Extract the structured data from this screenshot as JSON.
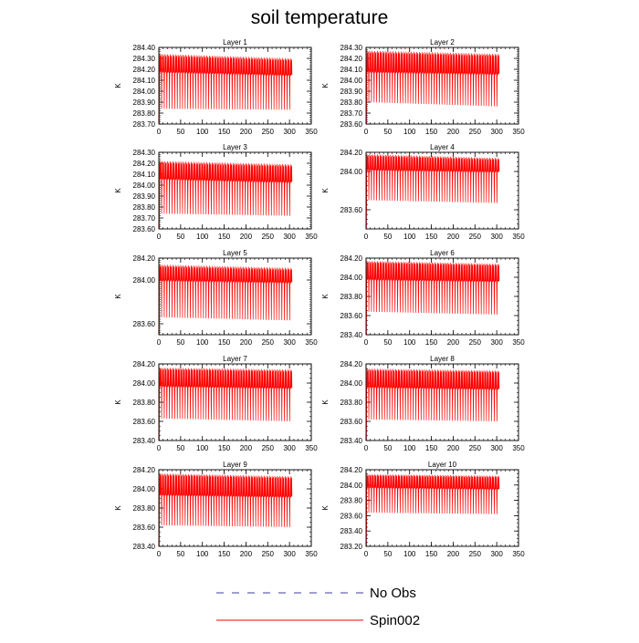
{
  "figure": {
    "title": "soil temperature"
  },
  "legend": {
    "placement": "bottom-center",
    "items": [
      {
        "label": "No Obs",
        "color": "#3d3d9e",
        "style": "dashed"
      },
      {
        "label": "Spin002",
        "color": "#ff0000",
        "style": "solid"
      }
    ]
  },
  "chart_data": [
    {
      "type": "line",
      "title": "Layer 1",
      "xlabel": "",
      "ylabel": "K",
      "xlim": [
        0,
        350
      ],
      "xticks": [
        0,
        50,
        100,
        150,
        200,
        250,
        300,
        350
      ],
      "ylim": [
        283.7,
        284.4
      ],
      "yticks": [
        "283.70",
        "283.80",
        "283.90",
        "284.00",
        "284.10",
        "284.20",
        "284.30",
        "284.40"
      ],
      "series": [
        {
          "name": "Spin002",
          "color": "#ff0000",
          "x_range": [
            1,
            306
          ],
          "period_days": 6,
          "band_upper": [
            284.34,
            284.3
          ],
          "band_mid": [
            284.18,
            284.15
          ],
          "lower_peak": [
            283.84,
            283.83
          ]
        }
      ]
    },
    {
      "type": "line",
      "title": "Layer 2",
      "xlabel": "",
      "ylabel": "K",
      "xlim": [
        0,
        350
      ],
      "xticks": [
        0,
        50,
        100,
        150,
        200,
        250,
        300,
        350
      ],
      "ylim": [
        283.6,
        284.3
      ],
      "yticks": [
        "283.60",
        "283.70",
        "283.80",
        "283.90",
        "284.00",
        "284.10",
        "284.20",
        "284.30"
      ],
      "series": [
        {
          "name": "Spin002",
          "color": "#ff0000",
          "x_range": [
            1,
            306
          ],
          "period_days": 6,
          "band_upper": [
            284.27,
            284.24
          ],
          "band_mid": [
            284.08,
            284.06
          ],
          "lower_peak": [
            283.8,
            283.76
          ]
        }
      ]
    },
    {
      "type": "line",
      "title": "Layer 3",
      "xlabel": "",
      "ylabel": "K",
      "xlim": [
        0,
        350
      ],
      "xticks": [
        0,
        50,
        100,
        150,
        200,
        250,
        300,
        350
      ],
      "ylim": [
        283.6,
        284.3
      ],
      "yticks": [
        "283.60",
        "283.70",
        "283.80",
        "283.90",
        "284.00",
        "284.10",
        "284.20",
        "284.30"
      ],
      "series": [
        {
          "name": "Spin002",
          "color": "#ff0000",
          "x_range": [
            1,
            306
          ],
          "period_days": 6,
          "band_upper": [
            284.22,
            284.19
          ],
          "band_mid": [
            284.06,
            284.03
          ],
          "lower_peak": [
            283.74,
            283.72
          ]
        }
      ]
    },
    {
      "type": "line",
      "title": "Layer 4",
      "xlabel": "",
      "ylabel": "K",
      "xlim": [
        0,
        350
      ],
      "xticks": [
        0,
        50,
        100,
        150,
        200,
        250,
        300,
        350
      ],
      "ylim": [
        283.4,
        284.2
      ],
      "yticks": [
        "283.60",
        "284.00",
        "284.20"
      ],
      "series": [
        {
          "name": "Spin002",
          "color": "#ff0000",
          "x_range": [
            1,
            306
          ],
          "period_days": 6,
          "band_upper": [
            284.18,
            284.14
          ],
          "band_mid": [
            284.02,
            284.0
          ],
          "lower_peak": [
            283.7,
            283.67
          ]
        }
      ]
    },
    {
      "type": "line",
      "title": "Layer 5",
      "xlabel": "",
      "ylabel": "K",
      "xlim": [
        0,
        350
      ],
      "xticks": [
        0,
        50,
        100,
        150,
        200,
        250,
        300,
        350
      ],
      "ylim": [
        283.5,
        284.2
      ],
      "yticks": [
        "283.60",
        "284.00",
        "284.20"
      ],
      "series": [
        {
          "name": "Spin002",
          "color": "#ff0000",
          "x_range": [
            1,
            306
          ],
          "period_days": 6,
          "band_upper": [
            284.14,
            284.11
          ],
          "band_mid": [
            284.0,
            283.98
          ],
          "lower_peak": [
            283.66,
            283.63
          ]
        }
      ]
    },
    {
      "type": "line",
      "title": "Layer 6",
      "xlabel": "",
      "ylabel": "K",
      "xlim": [
        0,
        350
      ],
      "xticks": [
        0,
        50,
        100,
        150,
        200,
        250,
        300,
        350
      ],
      "ylim": [
        283.4,
        284.2
      ],
      "yticks": [
        "283.40",
        "283.60",
        "283.80",
        "284.00",
        "284.20"
      ],
      "series": [
        {
          "name": "Spin002",
          "color": "#ff0000",
          "x_range": [
            1,
            306
          ],
          "period_days": 6,
          "band_upper": [
            284.17,
            284.14
          ],
          "band_mid": [
            283.98,
            283.96
          ],
          "lower_peak": [
            283.64,
            283.61
          ]
        }
      ]
    },
    {
      "type": "line",
      "title": "Layer 7",
      "xlabel": "",
      "ylabel": "K",
      "xlim": [
        0,
        350
      ],
      "xticks": [
        0,
        50,
        100,
        150,
        200,
        250,
        300,
        350
      ],
      "ylim": [
        283.4,
        284.2
      ],
      "yticks": [
        "283.40",
        "283.60",
        "283.80",
        "284.00",
        "284.20"
      ],
      "series": [
        {
          "name": "Spin002",
          "color": "#ff0000",
          "x_range": [
            1,
            306
          ],
          "period_days": 6,
          "band_upper": [
            284.16,
            284.14
          ],
          "band_mid": [
            283.97,
            283.95
          ],
          "lower_peak": [
            283.63,
            283.6
          ]
        }
      ]
    },
    {
      "type": "line",
      "title": "Layer 8",
      "xlabel": "",
      "ylabel": "K",
      "xlim": [
        0,
        350
      ],
      "xticks": [
        0,
        50,
        100,
        150,
        200,
        250,
        300,
        350
      ],
      "ylim": [
        283.4,
        284.2
      ],
      "yticks": [
        "283.40",
        "283.60",
        "283.80",
        "284.00",
        "284.20"
      ],
      "series": [
        {
          "name": "Spin002",
          "color": "#ff0000",
          "x_range": [
            1,
            306
          ],
          "period_days": 6,
          "band_upper": [
            284.15,
            284.13
          ],
          "band_mid": [
            283.96,
            283.94
          ],
          "lower_peak": [
            283.62,
            283.6
          ]
        }
      ]
    },
    {
      "type": "line",
      "title": "Layer 9",
      "xlabel": "",
      "ylabel": "K",
      "xlim": [
        0,
        350
      ],
      "xticks": [
        0,
        50,
        100,
        150,
        200,
        250,
        300,
        350
      ],
      "ylim": [
        283.4,
        284.2
      ],
      "yticks": [
        "283.40",
        "283.60",
        "283.80",
        "284.00",
        "284.20"
      ],
      "series": [
        {
          "name": "Spin002",
          "color": "#ff0000",
          "x_range": [
            1,
            306
          ],
          "period_days": 6,
          "band_upper": [
            284.16,
            284.13
          ],
          "band_mid": [
            283.94,
            283.92
          ],
          "lower_peak": [
            283.62,
            283.6
          ]
        }
      ]
    },
    {
      "type": "line",
      "title": "Layer 10",
      "xlabel": "",
      "ylabel": "K",
      "xlim": [
        0,
        350
      ],
      "xticks": [
        0,
        50,
        100,
        150,
        200,
        250,
        300,
        350
      ],
      "ylim": [
        283.2,
        284.2
      ],
      "yticks": [
        "283.20",
        "283.40",
        "283.60",
        "283.80",
        "284.00",
        "284.20"
      ],
      "series": [
        {
          "name": "Spin002",
          "color": "#ff0000",
          "x_range": [
            1,
            306
          ],
          "period_days": 6,
          "band_upper": [
            284.14,
            284.12
          ],
          "band_mid": [
            283.97,
            283.95
          ],
          "lower_peak": [
            283.64,
            283.62
          ]
        }
      ]
    }
  ]
}
